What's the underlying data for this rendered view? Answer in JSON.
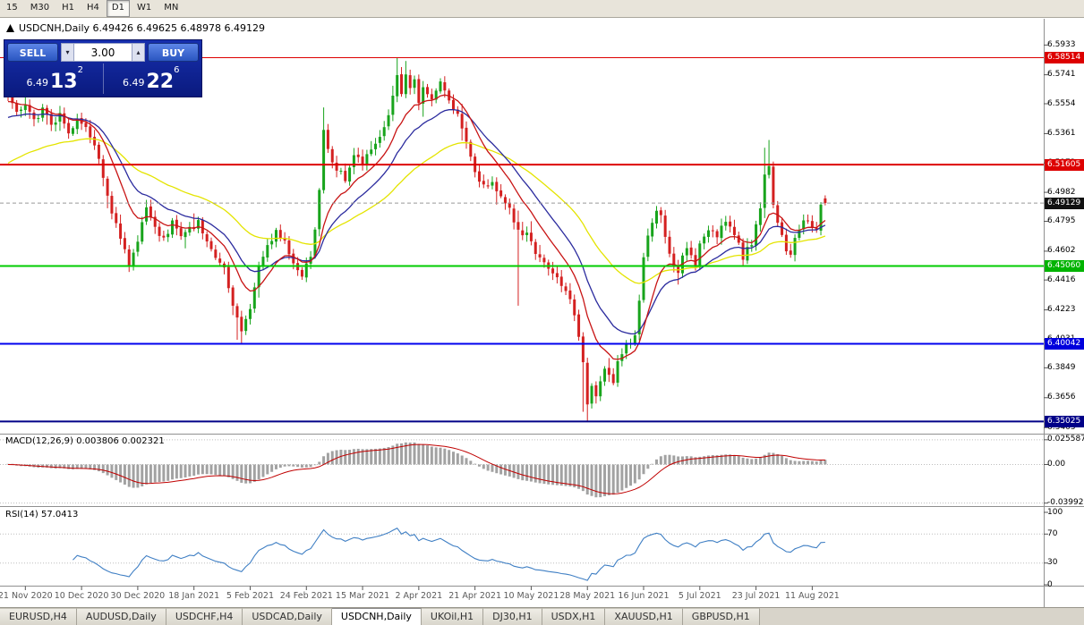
{
  "toolbar": {
    "timeframes": [
      {
        "label": "15",
        "active": false
      },
      {
        "label": "M30",
        "active": false
      },
      {
        "label": "H1",
        "active": false
      },
      {
        "label": "H4",
        "active": false
      },
      {
        "label": "D1",
        "active": true
      },
      {
        "label": "W1",
        "active": false
      },
      {
        "label": "MN",
        "active": false
      }
    ]
  },
  "chart": {
    "title": "USDCNH,Daily 6.49426 6.49625 6.48978 6.49129"
  },
  "one_click": {
    "sell_label": "SELL",
    "buy_label": "BUY",
    "volume": "3.00",
    "icons": {
      "volume_down": "▾",
      "volume_up": "▴"
    },
    "sell_price": {
      "prefix": "6.49",
      "big": "13",
      "sup": "2"
    },
    "buy_price": {
      "prefix": "6.49",
      "big": "22",
      "sup": "6"
    }
  },
  "price_axis": {
    "labels": [
      "6.5933",
      "6.5741",
      "6.5554",
      "6.5361",
      "6.5172",
      "6.4982",
      "6.4795",
      "6.4602",
      "6.4416",
      "6.4223",
      "6.4031",
      "6.3849",
      "6.3656",
      "6.3463"
    ],
    "badges": [
      {
        "text": "6.58514",
        "value": 6.58514,
        "color": "#dd0000"
      },
      {
        "text": "6.51605",
        "value": 6.51605,
        "color": "#dd0000"
      },
      {
        "text": "6.49129",
        "value": 6.49129,
        "color": "#111111"
      },
      {
        "text": "6.45060",
        "value": 6.4506,
        "color": "#00b300"
      },
      {
        "text": "6.40042",
        "value": 6.40042,
        "color": "#0000dd"
      },
      {
        "text": "6.35025",
        "value": 6.35025,
        "color": "#000088"
      }
    ]
  },
  "macd_panel": {
    "label": "MACD(12,26,9) 0.003806 0.002321",
    "scale": [
      {
        "text": "0.025587",
        "value": 0.025587
      },
      {
        "text": "0.00",
        "value": 0
      },
      {
        "text": "-0.039928",
        "value": -0.039928
      }
    ]
  },
  "rsi_panel": {
    "label": "RSI(14) 57.0413",
    "scale": [
      {
        "text": "100",
        "value": 100
      },
      {
        "text": "70",
        "value": 70
      },
      {
        "text": "30",
        "value": 30
      },
      {
        "text": "0",
        "value": 0
      }
    ],
    "levels": [
      70,
      30
    ]
  },
  "time_axis": {
    "dates": [
      "21 Nov 2020",
      "10 Dec 2020",
      "30 Dec 2020",
      "18 Jan 2021",
      "5 Feb 2021",
      "24 Feb 2021",
      "15 Mar 2021",
      "2 Apr 2021",
      "21 Apr 2021",
      "10 May 2021",
      "28 May 2021",
      "16 Jun 2021",
      "5 Jul 2021",
      "23 Jul 2021",
      "11 Aug 2021"
    ],
    "first_index": 4,
    "index_step": 13
  },
  "tabs": [
    {
      "label": "EURUSD,H4",
      "active": false
    },
    {
      "label": "AUDUSD,Daily",
      "active": false
    },
    {
      "label": "USDCHF,H4",
      "active": false
    },
    {
      "label": "USDCAD,Daily",
      "active": false
    },
    {
      "label": "USDCNH,Daily",
      "active": true
    },
    {
      "label": "UKOil,H1",
      "active": false
    },
    {
      "label": "DJ30,H1",
      "active": false
    },
    {
      "label": "USDX,H1",
      "active": false
    },
    {
      "label": "XAUUSD,H1",
      "active": false
    },
    {
      "label": "GBPUSD,H1",
      "active": false
    }
  ],
  "chart_data": {
    "type": "candlestick",
    "symbol": "USDCNH",
    "timeframe": "Daily",
    "current_bar": {
      "open": 6.49426,
      "high": 6.49625,
      "low": 6.48978,
      "close": 6.49129
    },
    "candle_count": 190,
    "y_range": [
      6.3435,
      6.5965
    ],
    "levels": [
      {
        "value": 6.58514,
        "color": "#dd0000",
        "width": 1
      },
      {
        "value": 6.51605,
        "color": "#dd0000",
        "width": 2
      },
      {
        "value": 6.4506,
        "color": "#00cc00",
        "width": 2
      },
      {
        "value": 6.40042,
        "color": "#0000ee",
        "width": 2
      },
      {
        "value": 6.35025,
        "color": "#000088",
        "width": 2
      }
    ],
    "current_price_line": {
      "value": 6.49129,
      "color": "#999999"
    },
    "price_path": [
      [
        0,
        6.563
      ],
      [
        2,
        6.549
      ],
      [
        4,
        6.556
      ],
      [
        6,
        6.544
      ],
      [
        8,
        6.552
      ],
      [
        10,
        6.541
      ],
      [
        12,
        6.549
      ],
      [
        14,
        6.536
      ],
      [
        16,
        6.545
      ],
      [
        18,
        6.542
      ],
      [
        20,
        6.528
      ],
      [
        22,
        6.509
      ],
      [
        24,
        6.486
      ],
      [
        26,
        6.468
      ],
      [
        28,
        6.452
      ],
      [
        30,
        6.466
      ],
      [
        32,
        6.488
      ],
      [
        34,
        6.474
      ],
      [
        36,
        6.468
      ],
      [
        38,
        6.478
      ],
      [
        40,
        6.468
      ],
      [
        42,
        6.474
      ],
      [
        44,
        6.479
      ],
      [
        46,
        6.465
      ],
      [
        48,
        6.455
      ],
      [
        50,
        6.448
      ],
      [
        52,
        6.424
      ],
      [
        54,
        6.407
      ],
      [
        56,
        6.424
      ],
      [
        58,
        6.452
      ],
      [
        60,
        6.462
      ],
      [
        62,
        6.474
      ],
      [
        64,
        6.468
      ],
      [
        66,
        6.452
      ],
      [
        68,
        6.443
      ],
      [
        70,
        6.458
      ],
      [
        71,
        6.475
      ],
      [
        72,
        6.502
      ],
      [
        73,
        6.538
      ],
      [
        74,
        6.525
      ],
      [
        76,
        6.514
      ],
      [
        78,
        6.507
      ],
      [
        80,
        6.522
      ],
      [
        82,
        6.517
      ],
      [
        84,
        6.528
      ],
      [
        86,
        6.534
      ],
      [
        88,
        6.548
      ],
      [
        89,
        6.56
      ],
      [
        90,
        6.572
      ],
      [
        91,
        6.562
      ],
      [
        92,
        6.574
      ],
      [
        93,
        6.564
      ],
      [
        94,
        6.572
      ],
      [
        95,
        6.556
      ],
      [
        96,
        6.566
      ],
      [
        98,
        6.56
      ],
      [
        100,
        6.568
      ],
      [
        102,
        6.556
      ],
      [
        104,
        6.548
      ],
      [
        106,
        6.532
      ],
      [
        108,
        6.512
      ],
      [
        110,
        6.502
      ],
      [
        112,
        6.506
      ],
      [
        114,
        6.494
      ],
      [
        116,
        6.488
      ],
      [
        118,
        6.474
      ],
      [
        120,
        6.47
      ],
      [
        122,
        6.46
      ],
      [
        124,
        6.452
      ],
      [
        126,
        6.446
      ],
      [
        128,
        6.44
      ],
      [
        130,
        6.429
      ],
      [
        132,
        6.407
      ],
      [
        133,
        6.389
      ],
      [
        134,
        6.363
      ],
      [
        135,
        6.372
      ],
      [
        136,
        6.368
      ],
      [
        137,
        6.377
      ],
      [
        138,
        6.386
      ],
      [
        139,
        6.38
      ],
      [
        140,
        6.376
      ],
      [
        141,
        6.388
      ],
      [
        142,
        6.394
      ],
      [
        143,
        6.399
      ],
      [
        144,
        6.401
      ],
      [
        145,
        6.404
      ],
      [
        146,
        6.428
      ],
      [
        147,
        6.455
      ],
      [
        148,
        6.47
      ],
      [
        149,
        6.478
      ],
      [
        150,
        6.486
      ],
      [
        151,
        6.483
      ],
      [
        152,
        6.47
      ],
      [
        153,
        6.46
      ],
      [
        154,
        6.452
      ],
      [
        155,
        6.448
      ],
      [
        156,
        6.456
      ],
      [
        157,
        6.463
      ],
      [
        158,
        6.458
      ],
      [
        159,
        6.452
      ],
      [
        160,
        6.464
      ],
      [
        162,
        6.475
      ],
      [
        164,
        6.468
      ],
      [
        166,
        6.481
      ],
      [
        168,
        6.471
      ],
      [
        170,
        6.456
      ],
      [
        172,
        6.466
      ],
      [
        173,
        6.478
      ],
      [
        174,
        6.49
      ],
      [
        175,
        6.508
      ],
      [
        176,
        6.515
      ],
      [
        177,
        6.489
      ],
      [
        178,
        6.477
      ],
      [
        179,
        6.47
      ],
      [
        180,
        6.461
      ],
      [
        181,
        6.458
      ],
      [
        182,
        6.469
      ],
      [
        183,
        6.473
      ],
      [
        184,
        6.478
      ],
      [
        185,
        6.479
      ],
      [
        186,
        6.477
      ],
      [
        187,
        6.474
      ],
      [
        188,
        6.49
      ],
      [
        189,
        6.4913
      ]
    ],
    "wick_overrides": {
      "53": {
        "l": 6.403
      },
      "54": {
        "l": 6.40042
      },
      "73": {
        "h": 6.553
      },
      "90": {
        "h": 6.58514
      },
      "92": {
        "h": 6.583
      },
      "118": {
        "l": 6.425
      },
      "133": {
        "l": 6.3565
      },
      "134": {
        "l": 6.35025
      },
      "175": {
        "h": 6.527
      },
      "176": {
        "h": 6.532
      },
      "189": {
        "o": 6.49426,
        "h": 6.49625,
        "l": 6.48978,
        "c": 6.49129
      }
    },
    "colors": {
      "up": "#18a41c",
      "down": "#d42020",
      "ma_fast": "#c81414",
      "ma_mid": "#2b2b9e",
      "ma_slow": "#e4e400",
      "macd_hist": "#a2a2a2",
      "macd_signal": "#c00000",
      "rsi": "#3f7fc4"
    },
    "moving_averages": [
      {
        "period": 45,
        "color_key": "ma_slow",
        "seed": 6.515
      },
      {
        "period": 20,
        "color_key": "ma_mid",
        "seed": 6.545
      },
      {
        "period": 11,
        "color_key": "ma_fast",
        "seed": 6.556
      }
    ],
    "macd": {
      "fast": 12,
      "slow": 26,
      "signal": 9
    },
    "rsi": {
      "period": 14
    }
  }
}
